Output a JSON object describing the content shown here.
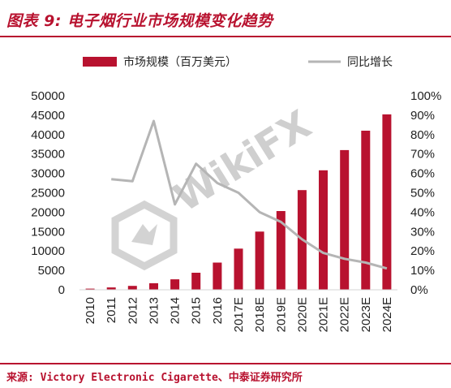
{
  "header": {
    "figure_title": "图表 9:  电子烟行业市场规模变化趋势"
  },
  "footer": {
    "source": "来源: Victory Electronic Cigarette、中泰证券研究所"
  },
  "watermark": {
    "text": "WikiFX"
  },
  "colors": {
    "bar": "#b8122f",
    "line": "#b5b5b5",
    "accent": "#b8122f"
  },
  "chart_data": {
    "type": "bar",
    "categories": [
      "2010",
      "2011",
      "2012",
      "2013",
      "2014",
      "2015",
      "2016",
      "2017E",
      "2018E",
      "2019E",
      "2020E",
      "2021E",
      "2022E",
      "2023E",
      "2024E"
    ],
    "series": [
      {
        "name": "市场规模（百万美元）",
        "type": "bar",
        "axis": "left",
        "values": [
          300,
          600,
          1000,
          1700,
          2700,
          4400,
          7000,
          10600,
          15000,
          20300,
          25700,
          30800,
          36000,
          41000,
          45200
        ]
      },
      {
        "name": "同比增长",
        "type": "line",
        "axis": "right",
        "values": [
          null,
          0.57,
          0.56,
          0.87,
          0.44,
          0.65,
          0.55,
          0.5,
          0.4,
          0.35,
          0.26,
          0.19,
          0.16,
          0.14,
          0.11
        ]
      }
    ],
    "y_left": {
      "ylim": [
        0,
        50000
      ],
      "ticks": [
        "0",
        "5000",
        "10000",
        "15000",
        "20000",
        "25000",
        "30000",
        "35000",
        "40000",
        "45000",
        "50000"
      ]
    },
    "y_right": {
      "ylim": [
        0,
        1
      ],
      "ticks": [
        "0%",
        "10%",
        "20%",
        "30%",
        "40%",
        "50%",
        "60%",
        "70%",
        "80%",
        "90%",
        "100%"
      ]
    },
    "legend_position": "top",
    "grid": false
  }
}
